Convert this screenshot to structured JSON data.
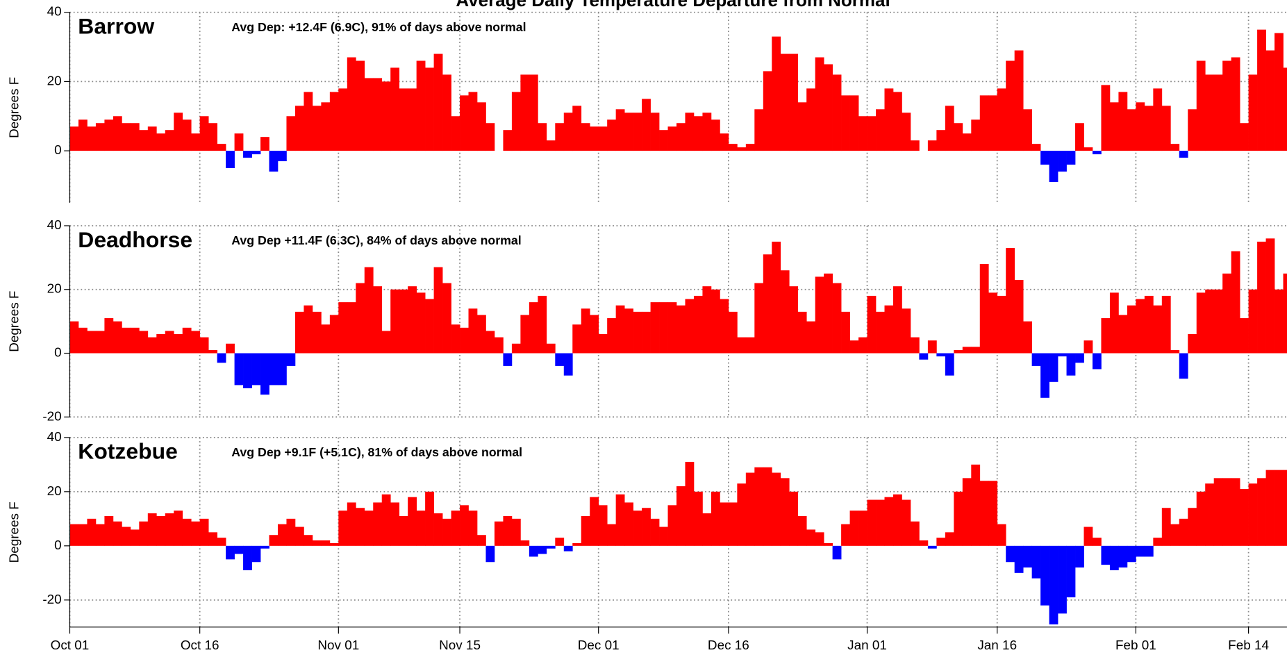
{
  "title": "Average Daily Temperature Departure from Normal",
  "chart_data": [
    {
      "type": "bar",
      "title": "Barrow",
      "annotation": "Avg Dep: +12.4F (6.9C), 91% of days above normal",
      "y_label": "Degrees F",
      "ylim": [
        -15,
        40
      ],
      "yticks": [
        0,
        20,
        40
      ],
      "grid": true,
      "positive_color": "#ff0000",
      "negative_color": "#0000ff",
      "values": [
        7,
        9,
        7,
        8,
        9,
        10,
        8,
        8,
        6,
        7,
        5,
        6,
        11,
        9,
        5,
        10,
        8,
        2,
        -5,
        5,
        -2,
        -1,
        4,
        -6,
        -3,
        10,
        13,
        17,
        13,
        14,
        17,
        18,
        27,
        26,
        21,
        21,
        20,
        24,
        18,
        18,
        26,
        24,
        28,
        22,
        10,
        16,
        17,
        14,
        8,
        null,
        6,
        17,
        22,
        22,
        8,
        3,
        8,
        11,
        13,
        8,
        7,
        7,
        9,
        12,
        11,
        11,
        15,
        11,
        6,
        7,
        8,
        11,
        10,
        11,
        9,
        5,
        2,
        1,
        2,
        12,
        23,
        33,
        28,
        28,
        14,
        18,
        27,
        25,
        22,
        16,
        16,
        10,
        10,
        12,
        18,
        17,
        11,
        3,
        null,
        3,
        6,
        13,
        8,
        5,
        9,
        16,
        16,
        18,
        26,
        29,
        12,
        2,
        -4,
        -9,
        -6,
        -4,
        8,
        1,
        -1,
        19,
        14,
        17,
        12,
        14,
        13,
        18,
        13,
        2,
        -2,
        12,
        26,
        22,
        22,
        26,
        27,
        8,
        22,
        35,
        29,
        34,
        24
      ]
    },
    {
      "type": "bar",
      "title": "Deadhorse",
      "annotation": "Avg Dep +11.4F (6.3C), 84% of days above normal",
      "y_label": "Degrees F",
      "ylim": [
        -20,
        40
      ],
      "yticks": [
        -20,
        0,
        20,
        40
      ],
      "grid": true,
      "positive_color": "#ff0000",
      "negative_color": "#0000ff",
      "values": [
        10,
        8,
        7,
        7,
        11,
        10,
        8,
        8,
        7,
        5,
        6,
        7,
        6,
        8,
        7,
        5,
        1,
        -3,
        3,
        -10,
        -11,
        -10,
        -13,
        -10,
        -10,
        -4,
        13,
        15,
        13,
        9,
        12,
        16,
        16,
        22,
        27,
        21,
        7,
        20,
        20,
        21,
        19,
        17,
        27,
        22,
        9,
        8,
        14,
        12,
        7,
        5,
        -4,
        3,
        12,
        16,
        18,
        3,
        -4,
        -7,
        9,
        14,
        12,
        6,
        11,
        15,
        14,
        13,
        13,
        16,
        16,
        16,
        15,
        17,
        18,
        21,
        20,
        17,
        13,
        5,
        5,
        22,
        31,
        35,
        26,
        21,
        13,
        10,
        24,
        25,
        22,
        13,
        4,
        5,
        18,
        13,
        15,
        21,
        14,
        5,
        -2,
        4,
        -1,
        -7,
        1,
        2,
        2,
        28,
        19,
        18,
        33,
        23,
        10,
        -4,
        -14,
        -9,
        -1,
        -7,
        -3,
        4,
        -5,
        11,
        19,
        12,
        15,
        17,
        18,
        15,
        18,
        1,
        -8,
        6,
        19,
        20,
        20,
        25,
        32,
        11,
        20,
        35,
        36,
        20,
        25
      ]
    },
    {
      "type": "bar",
      "title": "Kotzebue",
      "annotation": "Avg Dep +9.1F (+5.1C), 81% of days above normal",
      "y_label": "Degrees F",
      "ylim": [
        -30,
        40
      ],
      "yticks": [
        -20,
        0,
        20,
        40
      ],
      "grid": true,
      "positive_color": "#ff0000",
      "negative_color": "#0000ff",
      "categories": [
        "Oct 01",
        null,
        null,
        null,
        null,
        null,
        null,
        null,
        null,
        null,
        null,
        null,
        null,
        null,
        null,
        "Oct 16",
        null,
        null,
        null,
        null,
        null,
        null,
        null,
        null,
        null,
        null,
        null,
        null,
        null,
        null,
        null,
        "Nov 01",
        null,
        null,
        null,
        null,
        null,
        null,
        null,
        null,
        null,
        null,
        null,
        null,
        null,
        "Nov 15",
        null,
        null,
        null,
        null,
        null,
        null,
        null,
        null,
        null,
        null,
        null,
        null,
        null,
        null,
        null,
        "Dec 01",
        null,
        null,
        null,
        null,
        null,
        null,
        null,
        null,
        null,
        null,
        null,
        null,
        null,
        null,
        "Dec 16",
        null,
        null,
        null,
        null,
        null,
        null,
        null,
        null,
        null,
        null,
        null,
        null,
        null,
        null,
        null,
        "Jan 01",
        null,
        null,
        null,
        null,
        null,
        null,
        null,
        null,
        null,
        null,
        null,
        null,
        null,
        null,
        "Jan 16",
        null,
        null,
        null,
        null,
        null,
        null,
        null,
        null,
        null,
        null,
        null,
        null,
        null,
        null,
        null,
        "Feb 01",
        null,
        null,
        null,
        null,
        null,
        null,
        null,
        null,
        null,
        null,
        null,
        null,
        "Feb 14",
        null,
        null,
        null,
        null
      ],
      "values": [
        8,
        8,
        10,
        8,
        11,
        9,
        7,
        6,
        9,
        12,
        11,
        12,
        13,
        10,
        9,
        10,
        5,
        3,
        -5,
        -3,
        -9,
        -6,
        -1,
        4,
        8,
        10,
        7,
        4,
        2,
        2,
        1,
        13,
        16,
        14,
        13,
        16,
        19,
        16,
        11,
        18,
        13,
        20,
        12,
        10,
        13,
        15,
        13,
        4,
        -6,
        9,
        11,
        10,
        2,
        -4,
        -3,
        -1,
        3,
        -2,
        1,
        11,
        18,
        15,
        8,
        19,
        16,
        13,
        14,
        10,
        7,
        15,
        22,
        31,
        20,
        12,
        20,
        16,
        16,
        23,
        27,
        29,
        29,
        27,
        25,
        20,
        11,
        6,
        5,
        1,
        -5,
        8,
        13,
        13,
        17,
        17,
        18,
        19,
        17,
        9,
        2,
        -1,
        3,
        5,
        20,
        25,
        30,
        24,
        24,
        8,
        -6,
        -10,
        -8,
        -12,
        -22,
        -29,
        -25,
        -19,
        -8,
        7,
        3,
        -7,
        -9,
        -8,
        -6,
        -4,
        -4,
        3,
        14,
        8,
        10,
        14,
        20,
        23,
        25,
        25,
        25,
        21,
        23,
        25,
        28,
        28,
        28
      ]
    }
  ]
}
